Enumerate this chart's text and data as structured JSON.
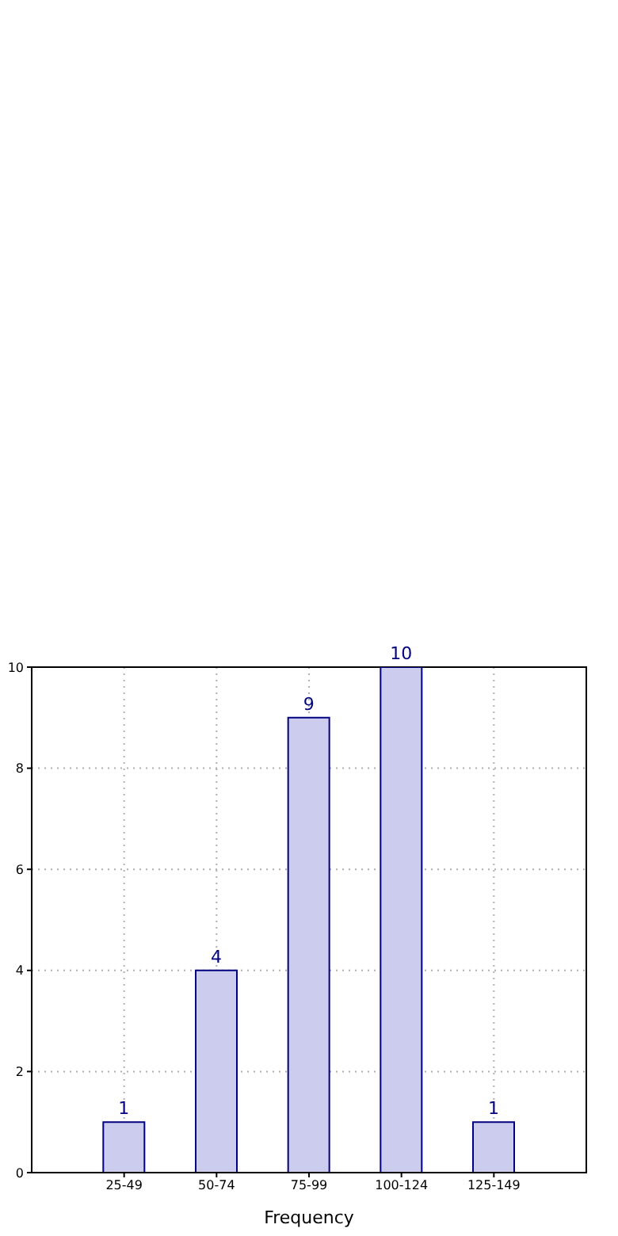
{
  "chart_data": {
    "type": "bar",
    "xlabel": "Frequency",
    "categories": [
      "25-49",
      "50-74",
      "75-99",
      "100-124",
      "125-149"
    ],
    "values": [
      1,
      4,
      9,
      10,
      1
    ],
    "color": "#ccccee",
    "ylim": [
      0,
      10
    ],
    "yticks": [
      0,
      2,
      4,
      6,
      8,
      10
    ],
    "grid": true,
    "data_labels": true
  }
}
